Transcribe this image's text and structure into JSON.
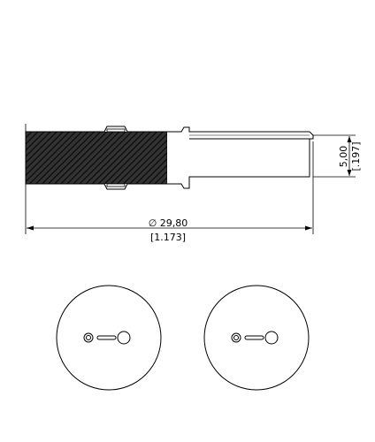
{
  "drawing": {
    "width_dimension": {
      "value": "∅ 29,80",
      "imperial": "[1.173]"
    },
    "height_dimension": {
      "value": "5,00",
      "imperial": "[.197]"
    },
    "front_views": [
      {
        "label": "",
        "holes": [
          "small-hole",
          "slot",
          "large-hole"
        ]
      },
      {
        "label": "",
        "holes": [
          "small-hole",
          "slot",
          "large-hole"
        ]
      }
    ],
    "colors": {
      "line": "#000000",
      "hatch_fill": "#2a2a2a",
      "background": "#ffffff"
    }
  }
}
